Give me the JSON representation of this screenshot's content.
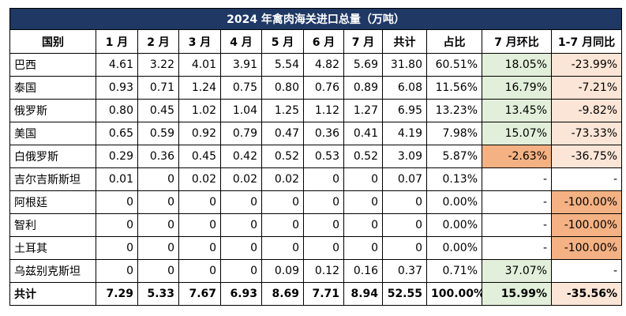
{
  "header": {
    "title": "2024 年禽肉海关进口总量（万吨）"
  },
  "table": {
    "columns": [
      "国别",
      "1 月",
      "2 月",
      "3 月",
      "4 月",
      "5 月",
      "6 月",
      "7 月",
      "共计",
      "占比",
      "7 月环比",
      "1-7 月同比"
    ],
    "rows": [
      [
        "巴西",
        "4.61",
        "3.22",
        "4.01",
        "3.91",
        "5.54",
        "4.82",
        "5.69",
        "31.80",
        "60.51%",
        "18.05%",
        "-23.99%"
      ],
      [
        "泰国",
        "0.93",
        "0.71",
        "1.24",
        "0.75",
        "0.80",
        "0.76",
        "0.89",
        "6.08",
        "11.56%",
        "16.79%",
        "-7.21%"
      ],
      [
        "俄罗斯",
        "0.80",
        "0.45",
        "1.02",
        "1.04",
        "1.25",
        "1.12",
        "1.27",
        "6.95",
        "13.23%",
        "13.45%",
        "-9.82%"
      ],
      [
        "美国",
        "0.65",
        "0.59",
        "0.92",
        "0.79",
        "0.47",
        "0.36",
        "0.41",
        "4.19",
        "7.98%",
        "15.07%",
        "-73.33%"
      ],
      [
        "白俄罗斯",
        "0.29",
        "0.36",
        "0.45",
        "0.42",
        "0.52",
        "0.53",
        "0.52",
        "3.09",
        "5.87%",
        "-2.63%",
        "-36.75%"
      ],
      [
        "吉尔吉斯斯坦",
        "0.01",
        "0",
        "0.02",
        "0.02",
        "0.02",
        "0",
        "0",
        "0.07",
        "0.13%",
        "-",
        "-"
      ],
      [
        "阿根廷",
        "0",
        "0",
        "0",
        "0",
        "0",
        "0",
        "0",
        "0",
        "0.00%",
        "-",
        "-100.00%"
      ],
      [
        "智利",
        "0",
        "0",
        "0",
        "0",
        "0",
        "0",
        "0",
        "0",
        "0.00%",
        "-",
        "-100.00%"
      ],
      [
        "土耳其",
        "0",
        "0",
        "0",
        "0",
        "0",
        "0",
        "0",
        "0",
        "0.00%",
        "-",
        "-100.00%"
      ],
      [
        "乌兹别克斯坦",
        "0",
        "0",
        "0",
        "0",
        "0.09",
        "0.12",
        "0.16",
        "0.37",
        "0.71%",
        "37.07%",
        "-"
      ],
      [
        "共计",
        "7.29",
        "5.33",
        "7.67",
        "6.93",
        "8.69",
        "7.71",
        "8.94",
        "52.55",
        "100.00%",
        "15.99%",
        "-35.56%"
      ]
    ]
  }
}
